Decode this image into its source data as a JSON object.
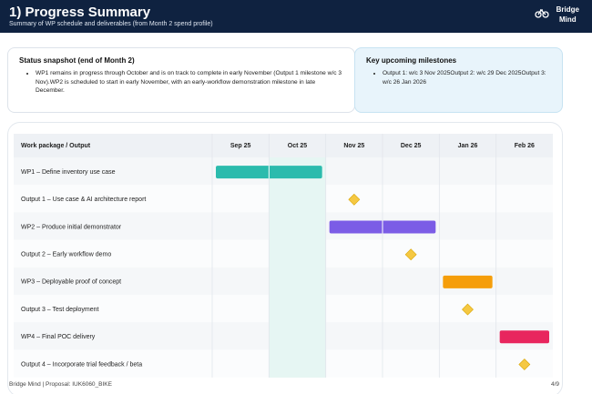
{
  "header": {
    "title": "1) Progress Summary",
    "subtitle": "Summary of WP schedule and deliverables (from Month 2 spend profile)",
    "logo_lines": [
      "Bridge",
      "Mind"
    ]
  },
  "status": {
    "title": "Status snapshot (end of Month 2)",
    "bullets": [
      "WP1 remains in progress through October and is on track to complete in early November (Output 1 milestone w/c 3 Nov).WP2 is scheduled to start in early November, with an early-workflow demonstration milestone in late December."
    ]
  },
  "milestones": {
    "title": "Key upcoming milestones",
    "bullets": [
      "Output 1: w/c 3 Nov 2025Output 2: w/c 29 Dec 2025Output 3: w/c 26 Jan 2026"
    ]
  },
  "gantt": {
    "header": "Work package / Output",
    "months": [
      "Sep 25",
      "Oct 25",
      "Nov 25",
      "Dec 25",
      "Jan 26",
      "Feb 26"
    ],
    "current": "Oct 25",
    "rows": [
      {
        "label": "WP1 – Define inventory use case",
        "kind": "bar",
        "start": "Sep 25",
        "end": "Oct 25",
        "color": "#2bbbad"
      },
      {
        "label": "Output 1 – Use case & AI architecture report",
        "kind": "milestone",
        "at": "Nov 25",
        "color": "#f5c842"
      },
      {
        "label": "WP2 – Produce initial demonstrator",
        "kind": "bar",
        "start": "Nov 25",
        "end": "Dec 25",
        "color": "#7b5ce6"
      },
      {
        "label": "Output 2 – Early workflow demo",
        "kind": "milestone",
        "at": "Dec 25",
        "color": "#f5c842"
      },
      {
        "label": "WP3 – Deployable proof of concept",
        "kind": "bar",
        "start": "Jan 26",
        "end": "Jan 26",
        "color": "#f59e0b"
      },
      {
        "label": "Output 3 – Test deployment",
        "kind": "milestone",
        "at": "Jan 26",
        "color": "#f5c842"
      },
      {
        "label": "WP4 – Final POC delivery",
        "kind": "bar",
        "start": "Feb 26",
        "end": "Feb 26",
        "color": "#e8265e"
      },
      {
        "label": "Output 4 – Incorporate trial feedback / beta",
        "kind": "milestone",
        "at": "Feb 26",
        "color": "#f5c842"
      }
    ]
  },
  "footer": {
    "left": "Bridge Mind | Proposal: IUK6060_BIKE",
    "page": "4/9"
  }
}
